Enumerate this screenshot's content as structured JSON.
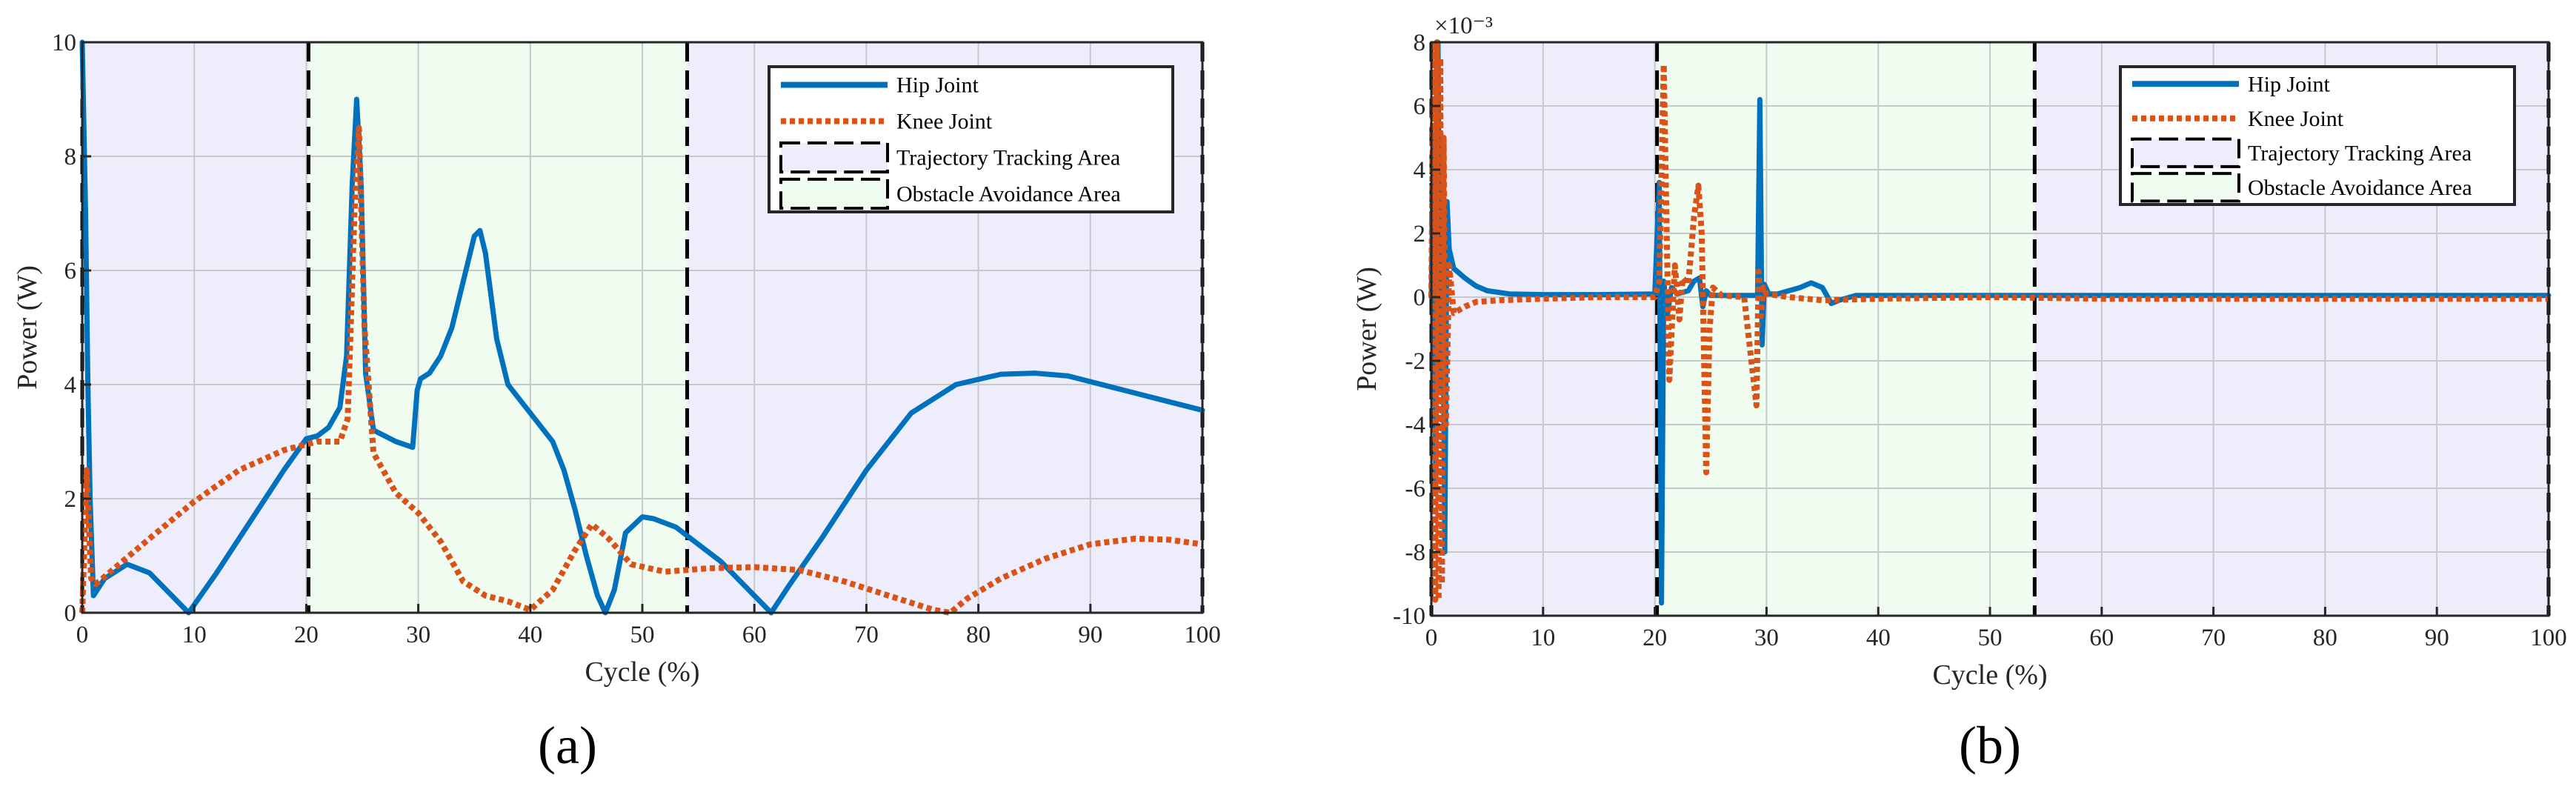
{
  "chart_data": [
    {
      "type": "line",
      "panel_label": "(a)",
      "xlabel": "Cycle (%)",
      "ylabel": "Power (W)",
      "xlim": [
        0,
        100
      ],
      "ylim": [
        0,
        10
      ],
      "xticks": [
        0,
        10,
        20,
        30,
        40,
        50,
        60,
        70,
        80,
        90,
        100
      ],
      "yticks": [
        0,
        2,
        4,
        6,
        8,
        10
      ],
      "exponent_label": "",
      "grid": true,
      "legend_position": "top-right",
      "shaded_regions": [
        {
          "name": "Trajectory Tracking Area",
          "x": [
            0,
            20.2
          ],
          "color": "#ededfc"
        },
        {
          "name": "Obstacle Avoidance Area",
          "x": [
            20.2,
            54
          ],
          "color": "#effcef"
        },
        {
          "name": "Trajectory Tracking Area",
          "x": [
            54,
            100
          ],
          "color": "#ededfc"
        }
      ],
      "series": [
        {
          "name": "Hip Joint",
          "color": "#0072bd",
          "style": "solid",
          "x": [
            0,
            0.3,
            0.5,
            0.7,
            1.0,
            2,
            4,
            6,
            8,
            9.5,
            12,
            15,
            18,
            20,
            21,
            22,
            23,
            23.6,
            24.1,
            24.5,
            24.9,
            25.3,
            26,
            27,
            28,
            29.5,
            29.9,
            30.2,
            31,
            32,
            33,
            34,
            35,
            35.5,
            36,
            37,
            38,
            40,
            42,
            43,
            44,
            45,
            46,
            46.7,
            47.5,
            48.5,
            50,
            51,
            53,
            55,
            57,
            59,
            61.5,
            63,
            66,
            70,
            74,
            78,
            82,
            85,
            88,
            92,
            96,
            100
          ],
          "y": [
            10,
            7,
            4,
            2,
            0.3,
            0.6,
            0.85,
            0.7,
            0.3,
            0,
            0.7,
            1.6,
            2.5,
            3.05,
            3.1,
            3.25,
            3.6,
            4.5,
            7.5,
            9.0,
            7.5,
            4.2,
            3.2,
            3.1,
            3.0,
            2.9,
            3.9,
            4.1,
            4.2,
            4.5,
            5.0,
            5.8,
            6.6,
            6.7,
            6.3,
            4.8,
            4.0,
            3.5,
            3.0,
            2.5,
            1.8,
            1.0,
            0.3,
            0,
            0.4,
            1.4,
            1.68,
            1.65,
            1.5,
            1.2,
            0.9,
            0.5,
            0,
            0.45,
            1.3,
            2.5,
            3.5,
            4.0,
            4.18,
            4.2,
            4.15,
            3.95,
            3.75,
            3.55
          ]
        },
        {
          "name": "Knee Joint",
          "color": "#d95319",
          "style": "dotted",
          "x": [
            0,
            0.4,
            0.8,
            1.2,
            3,
            6,
            10,
            14,
            18,
            20,
            21,
            22,
            23,
            23.7,
            24.3,
            24.7,
            25.2,
            26,
            28,
            30,
            32,
            34,
            36,
            38,
            40,
            42,
            44,
            45.5,
            47,
            49,
            52,
            56,
            60,
            64,
            68,
            72,
            76,
            77.5,
            79,
            82,
            86,
            90,
            94,
            97,
            100
          ],
          "y": [
            0,
            2.5,
            0.6,
            0.5,
            0.8,
            1.3,
            1.95,
            2.5,
            2.85,
            2.95,
            3.0,
            3.0,
            3.0,
            3.4,
            7.0,
            8.5,
            5.0,
            2.8,
            2.1,
            1.75,
            1.25,
            0.55,
            0.3,
            0.2,
            0.05,
            0.4,
            1.1,
            1.55,
            1.3,
            0.85,
            0.72,
            0.78,
            0.8,
            0.75,
            0.55,
            0.3,
            0.05,
            0,
            0.25,
            0.6,
            0.95,
            1.2,
            1.3,
            1.28,
            1.2
          ]
        }
      ],
      "legend": [
        "Hip Joint",
        "Knee Joint",
        "Trajectory Tracking Area",
        "Obstacle Avoidance Area"
      ]
    },
    {
      "type": "line",
      "panel_label": "(b)",
      "xlabel": "Cycle (%)",
      "ylabel": "Power (W)",
      "xlim": [
        0,
        100
      ],
      "ylim": [
        -10,
        8
      ],
      "xticks": [
        0,
        10,
        20,
        30,
        40,
        50,
        60,
        70,
        80,
        90,
        100
      ],
      "yticks": [
        -10,
        -8,
        -6,
        -4,
        -2,
        0,
        2,
        4,
        6,
        8
      ],
      "exponent_label": "×10⁻³",
      "grid": true,
      "legend_position": "top-right",
      "shaded_regions": [
        {
          "name": "Trajectory Tracking Area",
          "x": [
            0,
            20.2
          ],
          "color": "#ededfc"
        },
        {
          "name": "Obstacle Avoidance Area",
          "x": [
            20.2,
            54
          ],
          "color": "#effcef"
        },
        {
          "name": "Trajectory Tracking Area",
          "x": [
            54,
            100
          ],
          "color": "#ededfc"
        }
      ],
      "series": [
        {
          "name": "Hip Joint",
          "color": "#0072bd",
          "style": "solid",
          "x": [
            0,
            0.2,
            0.4,
            0.6,
            0.8,
            1.0,
            1.2,
            1.4,
            1.6,
            2,
            3,
            4,
            5,
            7,
            10,
            15,
            20,
            20.4,
            20.6,
            20.8,
            21.1,
            21.5,
            22,
            23,
            23.5,
            24,
            24.3,
            24.6,
            25,
            26,
            28,
            29.2,
            29.4,
            29.6,
            29.8,
            30.2,
            31,
            32,
            33,
            34,
            35,
            35.8,
            36.5,
            38,
            40,
            45,
            50,
            55,
            60,
            70,
            80,
            90,
            100
          ],
          "y": [
            0,
            5,
            -6,
            8,
            -3,
            3,
            -8,
            3,
            1.5,
            0.9,
            0.6,
            0.35,
            0.2,
            0.1,
            0.08,
            0.08,
            0.1,
            3.6,
            -9.6,
            0.5,
            -0.6,
            0.3,
            0.1,
            0.2,
            0.5,
            0.6,
            -0.3,
            0.2,
            0.05,
            0.05,
            0.05,
            0.05,
            6.2,
            -1.5,
            0.4,
            0.1,
            0.1,
            0.2,
            0.3,
            0.45,
            0.3,
            -0.2,
            -0.1,
            0.05,
            0.05,
            0.05,
            0.05,
            0.05,
            0.05,
            0.05,
            0.05,
            0.05,
            0.05
          ]
        },
        {
          "name": "Knee Joint",
          "color": "#d95319",
          "style": "dotted",
          "x": [
            0,
            0.2,
            0.35,
            0.5,
            0.65,
            0.8,
            0.95,
            1.1,
            1.3,
            1.6,
            2,
            3,
            4,
            6,
            10,
            15,
            20,
            20.4,
            20.8,
            21.3,
            21.8,
            22.2,
            22.5,
            23,
            23.5,
            23.9,
            24.2,
            24.6,
            24.9,
            25.2,
            26,
            28,
            29.1,
            29.3,
            29.5,
            29.7,
            30,
            32,
            35,
            40,
            50,
            60,
            70,
            80,
            90,
            100
          ],
          "y": [
            0,
            8,
            -9.5,
            8,
            -9.5,
            7.5,
            -9,
            5,
            -4,
            1,
            -0.5,
            -0.3,
            -0.15,
            -0.1,
            -0.05,
            0,
            0,
            0.5,
            7.3,
            -2.6,
            1.0,
            -0.7,
            0.6,
            0.4,
            2.5,
            3.5,
            2.0,
            -5.5,
            -1.0,
            0.3,
            0.05,
            0,
            -3.4,
            0.8,
            -0.6,
            0.3,
            0.1,
            0,
            -0.1,
            -0.05,
            0,
            -0.05,
            -0.05,
            -0.05,
            -0.05,
            -0.05
          ]
        }
      ],
      "legend": [
        "Hip Joint",
        "Knee Joint",
        "Trajectory Tracking Area",
        "Obstacle Avoidance Area"
      ]
    }
  ]
}
